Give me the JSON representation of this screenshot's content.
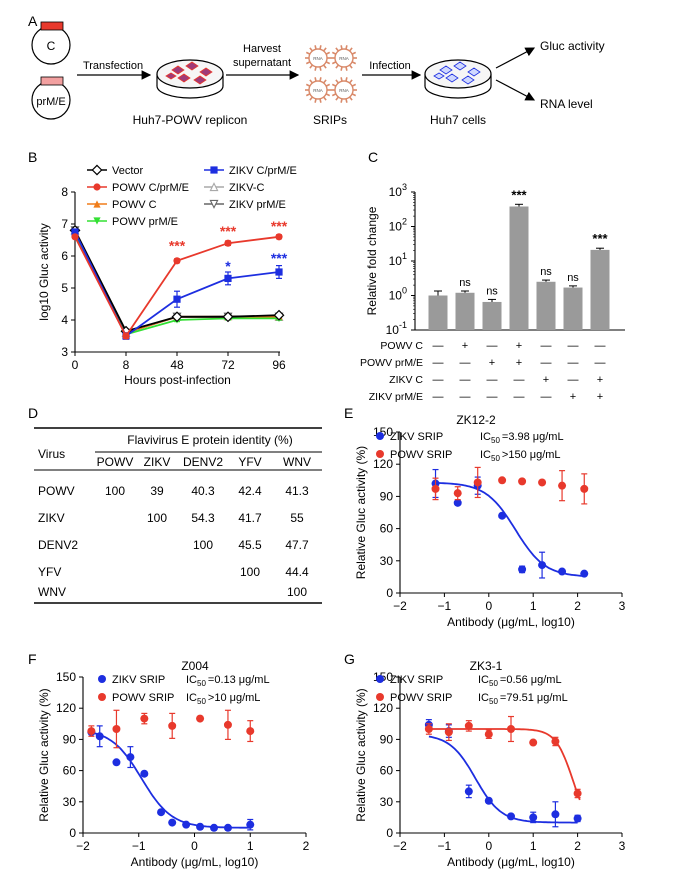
{
  "panel_letters": {
    "a": "A",
    "b": "B",
    "c": "C",
    "d": "D",
    "e": "E",
    "f": "F",
    "g": "G"
  },
  "schematic": {
    "plasmid_c": "C",
    "plasmid_prme": "prM/E",
    "step_transfection": "Transfection",
    "step_harvest_1": "Harvest",
    "step_harvest_2": "supernatant",
    "step_infection": "Infection",
    "label_replicon": "Huh7-POWV replicon",
    "label_srips": "SRIPs",
    "label_cells": "Huh7 cells",
    "readout_gluc": "Gluc activity",
    "readout_rna": "RNA level",
    "srip_text": "RNA"
  },
  "colors": {
    "red": "#e8392c",
    "blue": "#1d2ee0",
    "orange": "#f07d1a",
    "green": "#33e033",
    "gray": "#8a8a8a",
    "bar": "#9a9a9a",
    "cell_fill": "#a03a78",
    "srip_ring": "#d98a6a"
  },
  "table_d": {
    "header_span": "Flavivirus E protein identity (%)",
    "row_header": "Virus",
    "columns": [
      "POWV",
      "ZIKV",
      "DENV2",
      "YFV",
      "WNV"
    ],
    "rows": [
      {
        "virus": "POWV",
        "values": [
          "100",
          "39",
          "40.3",
          "42.4",
          "41.3"
        ]
      },
      {
        "virus": "ZIKV",
        "values": [
          "",
          "100",
          "54.3",
          "41.7",
          "55"
        ]
      },
      {
        "virus": "DENV2",
        "values": [
          "",
          "",
          "100",
          "45.5",
          "47.7"
        ]
      },
      {
        "virus": "YFV",
        "values": [
          "",
          "",
          "",
          "100",
          "44.4"
        ]
      },
      {
        "virus": "WNV",
        "values": [
          "",
          "",
          "",
          "",
          "100"
        ]
      }
    ]
  },
  "chart_data": [
    {
      "id": "B",
      "type": "line",
      "xlabel": "Hours post-infection",
      "ylabel": "log10 Gluc activity",
      "xticks": [
        "0",
        "8",
        "48",
        "72",
        "96"
      ],
      "yticks": [
        "3",
        "4",
        "5",
        "6",
        "7",
        "8"
      ],
      "ylim": [
        3,
        8
      ],
      "legend": "top",
      "series": [
        {
          "name": "Vector",
          "color": "#000000",
          "marker": "diamond-open",
          "values": [
            6.8,
            3.65,
            4.1,
            4.1,
            4.15
          ],
          "err": [
            0.05,
            0.05,
            0.06,
            0.06,
            0.06
          ]
        },
        {
          "name": "POWV C/prM/E",
          "color": "#e8392c",
          "marker": "circle",
          "values": [
            6.6,
            3.5,
            5.85,
            6.4,
            6.6
          ],
          "err": [
            0.05,
            0.08,
            0.06,
            0.07,
            0.06
          ]
        },
        {
          "name": "POWV C",
          "color": "#f07d1a",
          "marker": "triangle-up",
          "values": [
            6.7,
            3.6,
            4.1,
            4.1,
            4.1
          ],
          "err": [
            0.05,
            0.05,
            0.05,
            0.05,
            0.05
          ]
        },
        {
          "name": "POWV prM/E",
          "color": "#33e033",
          "marker": "triangle-down",
          "values": [
            6.7,
            3.55,
            4.0,
            4.05,
            4.05
          ],
          "err": [
            0.05,
            0.05,
            0.05,
            0.05,
            0.05
          ]
        },
        {
          "name": "ZIKV C/prM/E",
          "color": "#1d2ee0",
          "marker": "square",
          "values": [
            6.75,
            3.5,
            4.65,
            5.3,
            5.5
          ],
          "err": [
            0.05,
            0.1,
            0.25,
            0.2,
            0.2
          ]
        },
        {
          "name": "ZIKV-C",
          "color": "#a8a8a8",
          "marker": "triangle-up-open",
          "values": [
            6.8,
            3.6,
            4.1,
            4.12,
            4.1
          ],
          "err": [
            0.04,
            0.05,
            0.05,
            0.05,
            0.05
          ]
        },
        {
          "name": "ZIKV prM/E",
          "color": "#666666",
          "marker": "triangle-down-open",
          "values": [
            6.8,
            3.6,
            4.1,
            4.1,
            4.1
          ],
          "err": [
            0.04,
            0.05,
            0.05,
            0.05,
            0.05
          ]
        }
      ],
      "annotations": [
        {
          "text": "***",
          "x": "48",
          "y": 6.3,
          "color": "#e8392c"
        },
        {
          "text": "***",
          "x": "72",
          "y": 6.75,
          "color": "#e8392c"
        },
        {
          "text": "***",
          "x": "96",
          "y": 6.9,
          "color": "#e8392c"
        },
        {
          "text": "*",
          "x": "72",
          "y": 5.65,
          "color": "#1d2ee0"
        },
        {
          "text": "***",
          "x": "96",
          "y": 5.9,
          "color": "#1d2ee0"
        }
      ]
    },
    {
      "id": "C",
      "type": "bar",
      "ylabel": "Relative fold change",
      "yscale": "log",
      "ylim": [
        0.1,
        1000
      ],
      "yticks": [
        {
          "base": "10",
          "exp": "-1"
        },
        {
          "base": "10",
          "exp": "0"
        },
        {
          "base": "10",
          "exp": "1"
        },
        {
          "base": "10",
          "exp": "2"
        },
        {
          "base": "10",
          "exp": "3"
        }
      ],
      "values": [
        1.0,
        1.2,
        0.65,
        380,
        2.5,
        1.7,
        21
      ],
      "err": [
        0.35,
        0.15,
        0.12,
        60,
        0.3,
        0.2,
        2.5
      ],
      "labels": [
        "",
        "ns",
        "ns",
        "***",
        "ns",
        "ns",
        "***"
      ],
      "factor_rows": [
        {
          "name": "POWV C",
          "marks": [
            "—",
            "+",
            "—",
            "+",
            "—",
            "—",
            "—"
          ]
        },
        {
          "name": "POWV prM/E",
          "marks": [
            "—",
            "—",
            "+",
            "+",
            "—",
            "—",
            "—"
          ]
        },
        {
          "name": "ZIKV C",
          "marks": [
            "—",
            "—",
            "—",
            "—",
            "+",
            "—",
            "+"
          ]
        },
        {
          "name": "ZIKV prM/E",
          "marks": [
            "—",
            "—",
            "—",
            "—",
            "—",
            "+",
            "+"
          ]
        }
      ]
    },
    {
      "id": "E",
      "type": "scatter",
      "title": "ZK12-2",
      "xlabel": "Antibody (μg/mL, log10)",
      "ylabel": "Relative Gluc activity (%)",
      "xlim": [
        -2,
        3
      ],
      "ylim": [
        0,
        150
      ],
      "xticks": [
        "−2",
        "−1",
        "0",
        "1",
        "2",
        "3"
      ],
      "yticks": [
        "0",
        "30",
        "60",
        "90",
        "120",
        "150"
      ],
      "series": [
        {
          "name": "ZIKV SRIP",
          "ic50_label": "IC",
          "ic50_sub": "50",
          "ic50_text": "=3.98 μg/mL",
          "color": "#1d2ee0",
          "x": [
            -1.2,
            -0.7,
            -0.25,
            0.3,
            0.75,
            1.2,
            1.65,
            2.15
          ],
          "y": [
            102,
            84,
            100,
            72,
            22,
            26,
            20,
            18
          ],
          "err": [
            13,
            0,
            8,
            0,
            3,
            12,
            0,
            0
          ],
          "fit": {
            "top": 103,
            "bottom": 15,
            "logic50": 0.6,
            "hill": 1.3,
            "xmin": -1.2,
            "xmax": 2.2
          }
        },
        {
          "name": "POWV SRIP",
          "ic50_label": "IC",
          "ic50_sub": "50",
          "ic50_text": ">150 μg/mL",
          "color": "#e8392c",
          "x": [
            -1.2,
            -0.7,
            -0.25,
            0.3,
            0.75,
            1.2,
            1.65,
            2.15
          ],
          "y": [
            97,
            93,
            103,
            105,
            104,
            103,
            100,
            97
          ],
          "err": [
            10,
            6,
            14,
            0,
            0,
            0,
            14,
            14
          ]
        }
      ]
    },
    {
      "id": "F",
      "type": "scatter",
      "title": "Z004",
      "xlabel": "Antibody (μg/mL, log10)",
      "ylabel": "Relative Gluc activity (%)",
      "xlim": [
        -2,
        2
      ],
      "ylim": [
        0,
        150
      ],
      "xticks": [
        "−2",
        "−1",
        "0",
        "1",
        "2"
      ],
      "yticks": [
        "0",
        "30",
        "60",
        "90",
        "120",
        "150"
      ],
      "series": [
        {
          "name": "ZIKV SRIP",
          "ic50_label": "IC",
          "ic50_sub": "50",
          "ic50_text": "=0.13 μg/mL",
          "color": "#1d2ee0",
          "x": [
            -1.85,
            -1.7,
            -1.4,
            -1.15,
            -0.9,
            -0.6,
            -0.4,
            -0.15,
            0.1,
            0.35,
            0.6,
            1.0
          ],
          "y": [
            97,
            93,
            68,
            73,
            57,
            20,
            10,
            8,
            6,
            5,
            5,
            8
          ],
          "err": [
            0,
            10,
            0,
            10,
            0,
            0,
            0,
            0,
            0,
            0,
            0,
            5
          ],
          "fit": {
            "top": 100,
            "bottom": 5,
            "logic50": -0.95,
            "hill": 1.6,
            "xmin": -1.85,
            "xmax": 1.0
          }
        },
        {
          "name": "POWV SRIP",
          "ic50_label": "IC",
          "ic50_sub": "50",
          "ic50_text": ">10 μg/mL",
          "color": "#e8392c",
          "x": [
            -1.85,
            -1.4,
            -0.9,
            -0.4,
            0.1,
            0.6,
            1.0
          ],
          "y": [
            98,
            100,
            110,
            103,
            110,
            104,
            98
          ],
          "err": [
            5,
            18,
            5,
            12,
            0,
            14,
            10
          ]
        }
      ]
    },
    {
      "id": "G",
      "type": "scatter",
      "title": "ZK3-1",
      "xlabel": "Antibody (μg/mL, log10)",
      "ylabel": "Relative Gluc activity (%)",
      "xlim": [
        -2,
        3
      ],
      "ylim": [
        0,
        150
      ],
      "xticks": [
        "−2",
        "−1",
        "0",
        "1",
        "2",
        "3"
      ],
      "yticks": [
        "0",
        "30",
        "60",
        "90",
        "120",
        "150"
      ],
      "series": [
        {
          "name": "ZIKV SRIP",
          "ic50_label": "IC",
          "ic50_sub": "50",
          "ic50_text": "=0.56 μg/mL",
          "color": "#1d2ee0",
          "x": [
            -1.35,
            -0.9,
            -0.45,
            0.0,
            0.5,
            1.0,
            1.5,
            2.0
          ],
          "y": [
            104,
            98,
            40,
            31,
            16,
            15,
            18,
            14
          ],
          "err": [
            5,
            6,
            6,
            0,
            0,
            5,
            12,
            3
          ],
          "fit": {
            "top": 95,
            "bottom": 10,
            "logic50": -0.3,
            "hill": 1.5,
            "xmin": -1.35,
            "xmax": 2.0
          }
        },
        {
          "name": "POWV SRIP",
          "ic50_label": "IC",
          "ic50_sub": "50",
          "ic50_text": "=79.51 μg/mL",
          "color": "#e8392c",
          "x": [
            -1.35,
            -0.9,
            -0.45,
            0.0,
            0.5,
            1.0,
            1.5,
            2.0
          ],
          "y": [
            100,
            97,
            103,
            95,
            100,
            87,
            88,
            38
          ],
          "err": [
            5,
            8,
            5,
            4,
            12,
            0,
            4,
            4
          ],
          "fit": {
            "top": 100,
            "bottom": 0,
            "logic50": 1.9,
            "hill": 2.2,
            "xmin": -1.35,
            "xmax": 2.05
          }
        }
      ]
    }
  ]
}
